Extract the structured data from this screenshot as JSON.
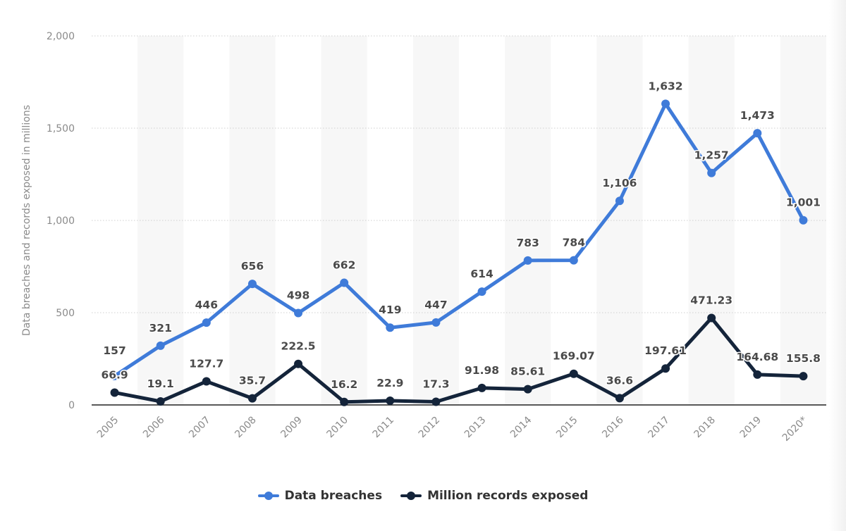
{
  "chart_data": {
    "type": "line",
    "title": "",
    "xlabel": "",
    "ylabel": "Data breaches and records exposed in millions",
    "categories": [
      "2005",
      "2006",
      "2007",
      "2008",
      "2009",
      "2010",
      "2011",
      "2012",
      "2013",
      "2014",
      "2015",
      "2016",
      "2017",
      "2018",
      "2019",
      "2020*"
    ],
    "ylim": [
      0,
      2000
    ],
    "yticks": [
      0,
      500,
      1000,
      1500,
      2000
    ],
    "ytick_labels": [
      "0",
      "500",
      "1,000",
      "1,500",
      "2,000"
    ],
    "grid": true,
    "legend_position": "bottom",
    "series": [
      {
        "name": "Data breaches",
        "color": "#3f7bd9",
        "values": [
          157,
          321,
          446,
          656,
          498,
          662,
          419,
          447,
          614,
          783,
          784,
          1106,
          1632,
          1257,
          1473,
          1001
        ],
        "labels": [
          "157",
          "321",
          "446",
          "656",
          "498",
          "662",
          "419",
          "447",
          "614",
          "783",
          "784",
          "1,106",
          "1,632",
          "1,257",
          "1,473",
          "1,001"
        ]
      },
      {
        "name": "Million records exposed",
        "color": "#14243a",
        "values": [
          66.9,
          19.1,
          127.7,
          35.7,
          222.5,
          16.2,
          22.9,
          17.3,
          91.98,
          85.61,
          169.07,
          36.6,
          197.61,
          471.23,
          164.68,
          155.8
        ],
        "labels": [
          "66.9",
          "19.1",
          "127.7",
          "35.7",
          "222.5",
          "16.2",
          "22.9",
          "17.3",
          "91.98",
          "85.61",
          "169.07",
          "36.6",
          "197.61",
          "471.23",
          "164.68",
          "155.8"
        ]
      }
    ]
  }
}
